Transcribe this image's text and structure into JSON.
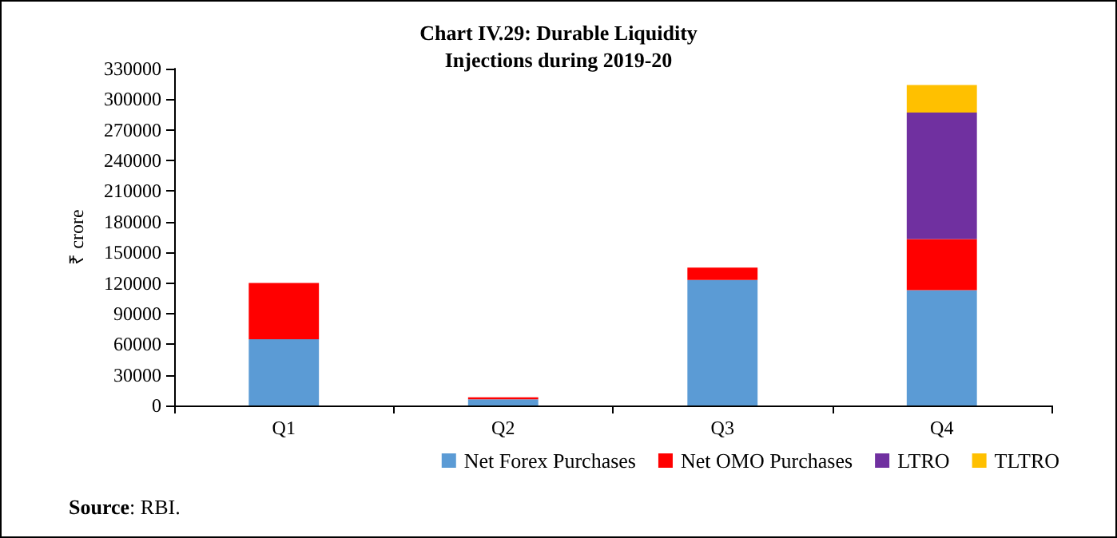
{
  "chart_data": {
    "type": "bar",
    "title": "Chart IV.29: Durable Liquidity\nInjections during 2019-20",
    "ylabel": "₹ crore",
    "categories": [
      "Q1",
      "Q2",
      "Q3",
      "Q4"
    ],
    "stacked": true,
    "series": [
      {
        "name": "Net Forex Purchases",
        "color": "#5b9bd5",
        "values": [
          65000,
          6000,
          123000,
          113000
        ]
      },
      {
        "name": "Net OMO Purchases",
        "color": "#ff0000",
        "values": [
          55000,
          2000,
          12000,
          50000
        ]
      },
      {
        "name": "LTRO",
        "color": "#7030a0",
        "values": [
          0,
          0,
          0,
          124000
        ]
      },
      {
        "name": "TLTRO",
        "color": "#ffc000",
        "values": [
          0,
          0,
          0,
          27000
        ]
      }
    ],
    "ylim": [
      0,
      330000
    ],
    "yticks": [
      0,
      30000,
      60000,
      90000,
      120000,
      150000,
      180000,
      210000,
      240000,
      270000,
      300000,
      330000
    ],
    "grid": false,
    "legend": "bottom right",
    "annotations": [
      "Source: RBI."
    ]
  }
}
